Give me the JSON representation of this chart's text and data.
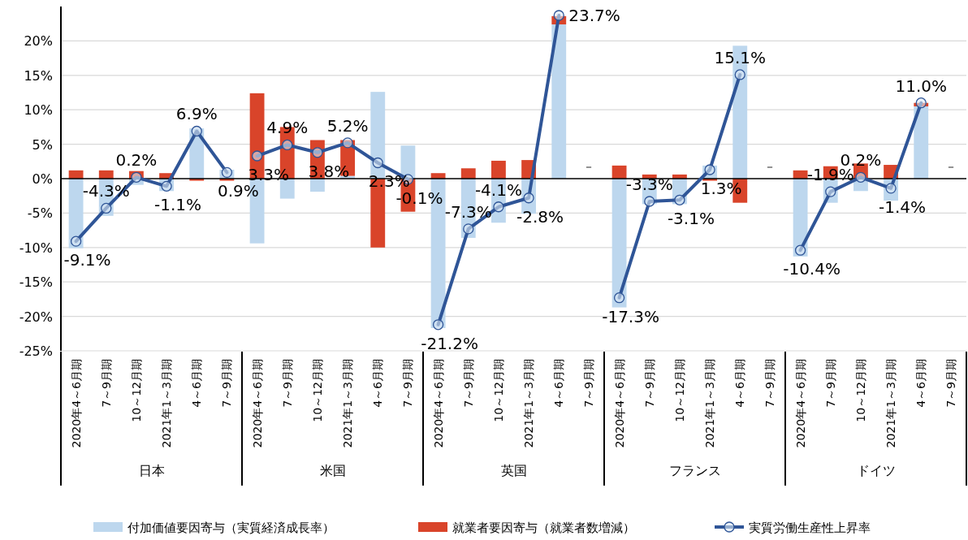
{
  "chart_data": {
    "type": "bar",
    "stacked": true,
    "grid": "y",
    "legend": "bottom",
    "marker": "circle",
    "categories": [
      "2020年4～6月期",
      "7～9月期",
      "10～12月期",
      "2021年1～3月期",
      "4～6月期",
      "7～9月期",
      "2020年4～6月期",
      "7～9月期",
      "10～12月期",
      "2021年1～3月期",
      "4～6月期",
      "7～9月期",
      "2020年4～6月期",
      "7～9月期",
      "10～12月期",
      "2021年1～3月期",
      "4～6月期",
      "7～9月期",
      "2020年4～6月期",
      "7～9月期",
      "10～12月期",
      "2021年1～3月期",
      "4～6月期",
      "7～9月期",
      "2020年4～6月期",
      "7～9月期",
      "10～12月期",
      "2021年1～3月期",
      "4～6月期",
      "7～9月期"
    ],
    "annotations": [
      "日本",
      "米国",
      "英国",
      "フランス",
      "ドイツ"
    ],
    "ylim": [
      -25,
      25
    ],
    "yticks": [
      {
        "value": -25,
        "label": "-25%"
      },
      {
        "value": -20,
        "label": "-20%"
      },
      {
        "value": -15,
        "label": "-15%"
      },
      {
        "value": -10,
        "label": "-10%"
      },
      {
        "value": -5,
        "label": "-5%"
      },
      {
        "value": 0,
        "label": "0%"
      },
      {
        "value": 5,
        "label": "5%"
      },
      {
        "value": 10,
        "label": "10%"
      },
      {
        "value": 15,
        "label": "15%"
      },
      {
        "value": 20,
        "label": "20%"
      }
    ],
    "series": [
      {
        "type": "bar",
        "name": "付加価値要因寄与（実質経済成長率）",
        "color": "#bdd7ee",
        "values": [
          -10.1,
          -5.4,
          -0.9,
          -1.8,
          7.3,
          1.3,
          -9.4,
          -2.9,
          -1.9,
          0.4,
          12.6,
          4.8,
          -21.7,
          -8.6,
          -6.4,
          -5.1,
          22.4,
          null,
          -18.7,
          -3.7,
          -3.7,
          1.9,
          19.3,
          null,
          -11.3,
          -3.5,
          -1.8,
          -3.2,
          10.5,
          null
        ]
      },
      {
        "type": "bar",
        "name": "就業者要因寄与（就業者数増減）",
        "color": "#d9442a",
        "values": [
          1.2,
          1.2,
          1.1,
          0.8,
          -0.3,
          -0.3,
          12.4,
          7.5,
          5.6,
          5.2,
          -10.0,
          -4.8,
          0.8,
          1.5,
          2.6,
          2.7,
          1.2,
          null,
          1.9,
          0.6,
          0.6,
          -0.3,
          -3.5,
          null,
          1.2,
          1.8,
          2.2,
          2.0,
          0.5,
          null
        ]
      },
      {
        "type": "line",
        "name": "実質労働生産性上昇率",
        "color": "#2f5597",
        "values": [
          -9.1,
          -4.3,
          0.2,
          -1.1,
          6.9,
          0.9,
          3.3,
          4.9,
          3.8,
          5.2,
          2.3,
          -0.1,
          -21.2,
          -7.3,
          -4.1,
          -2.8,
          23.7,
          null,
          -17.3,
          -3.3,
          -3.1,
          1.3,
          15.1,
          null,
          -10.4,
          -1.9,
          0.2,
          -1.4,
          11.0,
          null
        ],
        "value_labels": [
          "-9.1%",
          "-4.3%",
          "0.2%",
          "-1.1%",
          "6.9%",
          "0.9%",
          "3.3%",
          "4.9%",
          "3.8%",
          "5.2%",
          "2.3%",
          "-0.1%",
          "-21.2%",
          "-7.3%",
          "-4.1%",
          "-2.8%",
          "23.7%",
          "－",
          "-17.3%",
          "-3.3%",
          "-3.1%",
          "1.3%",
          "15.1%",
          "－",
          "-10.4%",
          "-1.9%",
          "0.2%",
          "-1.4%",
          "11.0%",
          "－"
        ]
      }
    ]
  }
}
